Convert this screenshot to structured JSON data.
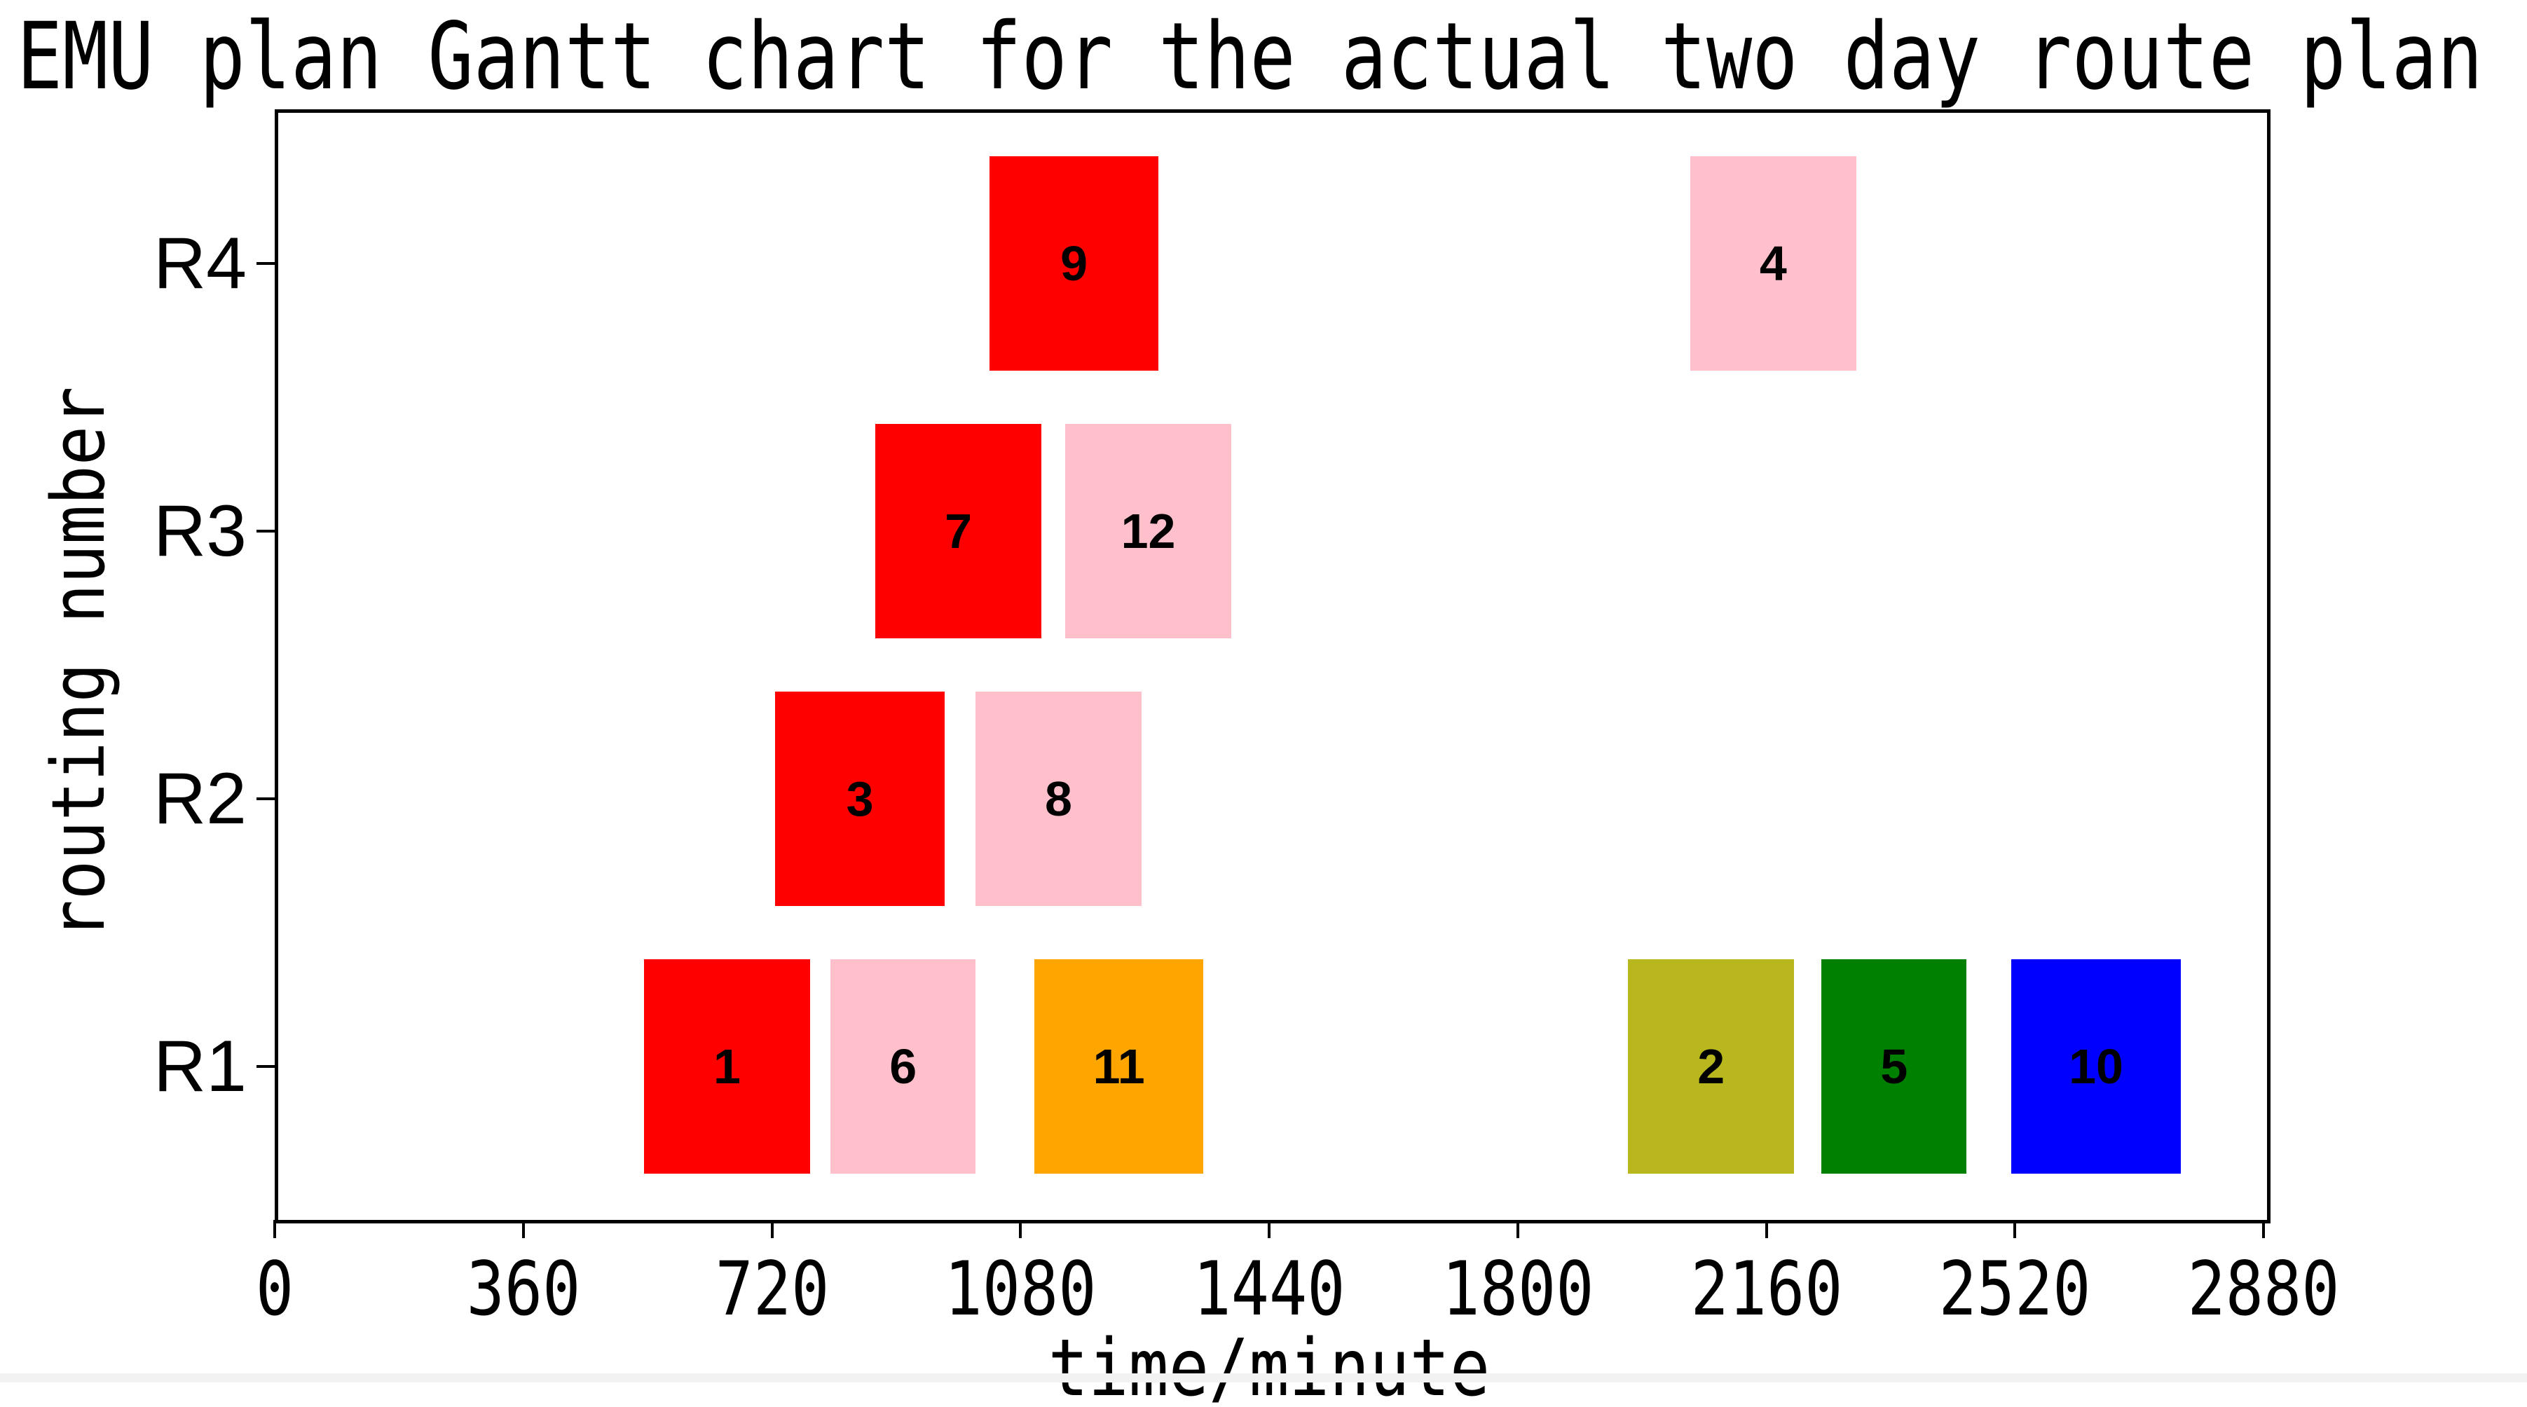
{
  "chart_data": {
    "type": "bar",
    "subtype": "gantt-horizontal",
    "title": "EMU plan Gantt chart for the actual two day route plan",
    "xlabel": "time/minute",
    "ylabel": "routing number",
    "xlim": [
      0,
      2880
    ],
    "x_ticks": [
      0,
      360,
      720,
      1080,
      1440,
      1800,
      2160,
      2520,
      2880
    ],
    "categories": [
      "R1",
      "R2",
      "R3",
      "R4"
    ],
    "grid": false,
    "legend": "none",
    "bar_height_fraction": 0.8,
    "colors": {
      "red": "#ff0000",
      "pink": "#ffc0cb",
      "orange": "#ffa500",
      "olive": "#b8b81e",
      "green": "#008000",
      "blue": "#0000ff"
    },
    "tasks": [
      {
        "label": "1",
        "row": "R1",
        "start": 535,
        "end": 775,
        "color": "red"
      },
      {
        "label": "6",
        "row": "R1",
        "start": 805,
        "end": 1015,
        "color": "pink"
      },
      {
        "label": "11",
        "row": "R1",
        "start": 1100,
        "end": 1345,
        "color": "orange"
      },
      {
        "label": "2",
        "row": "R1",
        "start": 1960,
        "end": 2200,
        "color": "olive"
      },
      {
        "label": "5",
        "row": "R1",
        "start": 2240,
        "end": 2450,
        "color": "green"
      },
      {
        "label": "10",
        "row": "R1",
        "start": 2515,
        "end": 2760,
        "color": "blue"
      },
      {
        "label": "3",
        "row": "R2",
        "start": 725,
        "end": 970,
        "color": "red"
      },
      {
        "label": "8",
        "row": "R2",
        "start": 1015,
        "end": 1255,
        "color": "pink"
      },
      {
        "label": "7",
        "row": "R3",
        "start": 870,
        "end": 1110,
        "color": "red"
      },
      {
        "label": "12",
        "row": "R3",
        "start": 1145,
        "end": 1385,
        "color": "pink"
      },
      {
        "label": "9",
        "row": "R4",
        "start": 1035,
        "end": 1280,
        "color": "red"
      },
      {
        "label": "4",
        "row": "R4",
        "start": 2050,
        "end": 2290,
        "color": "pink"
      }
    ]
  }
}
